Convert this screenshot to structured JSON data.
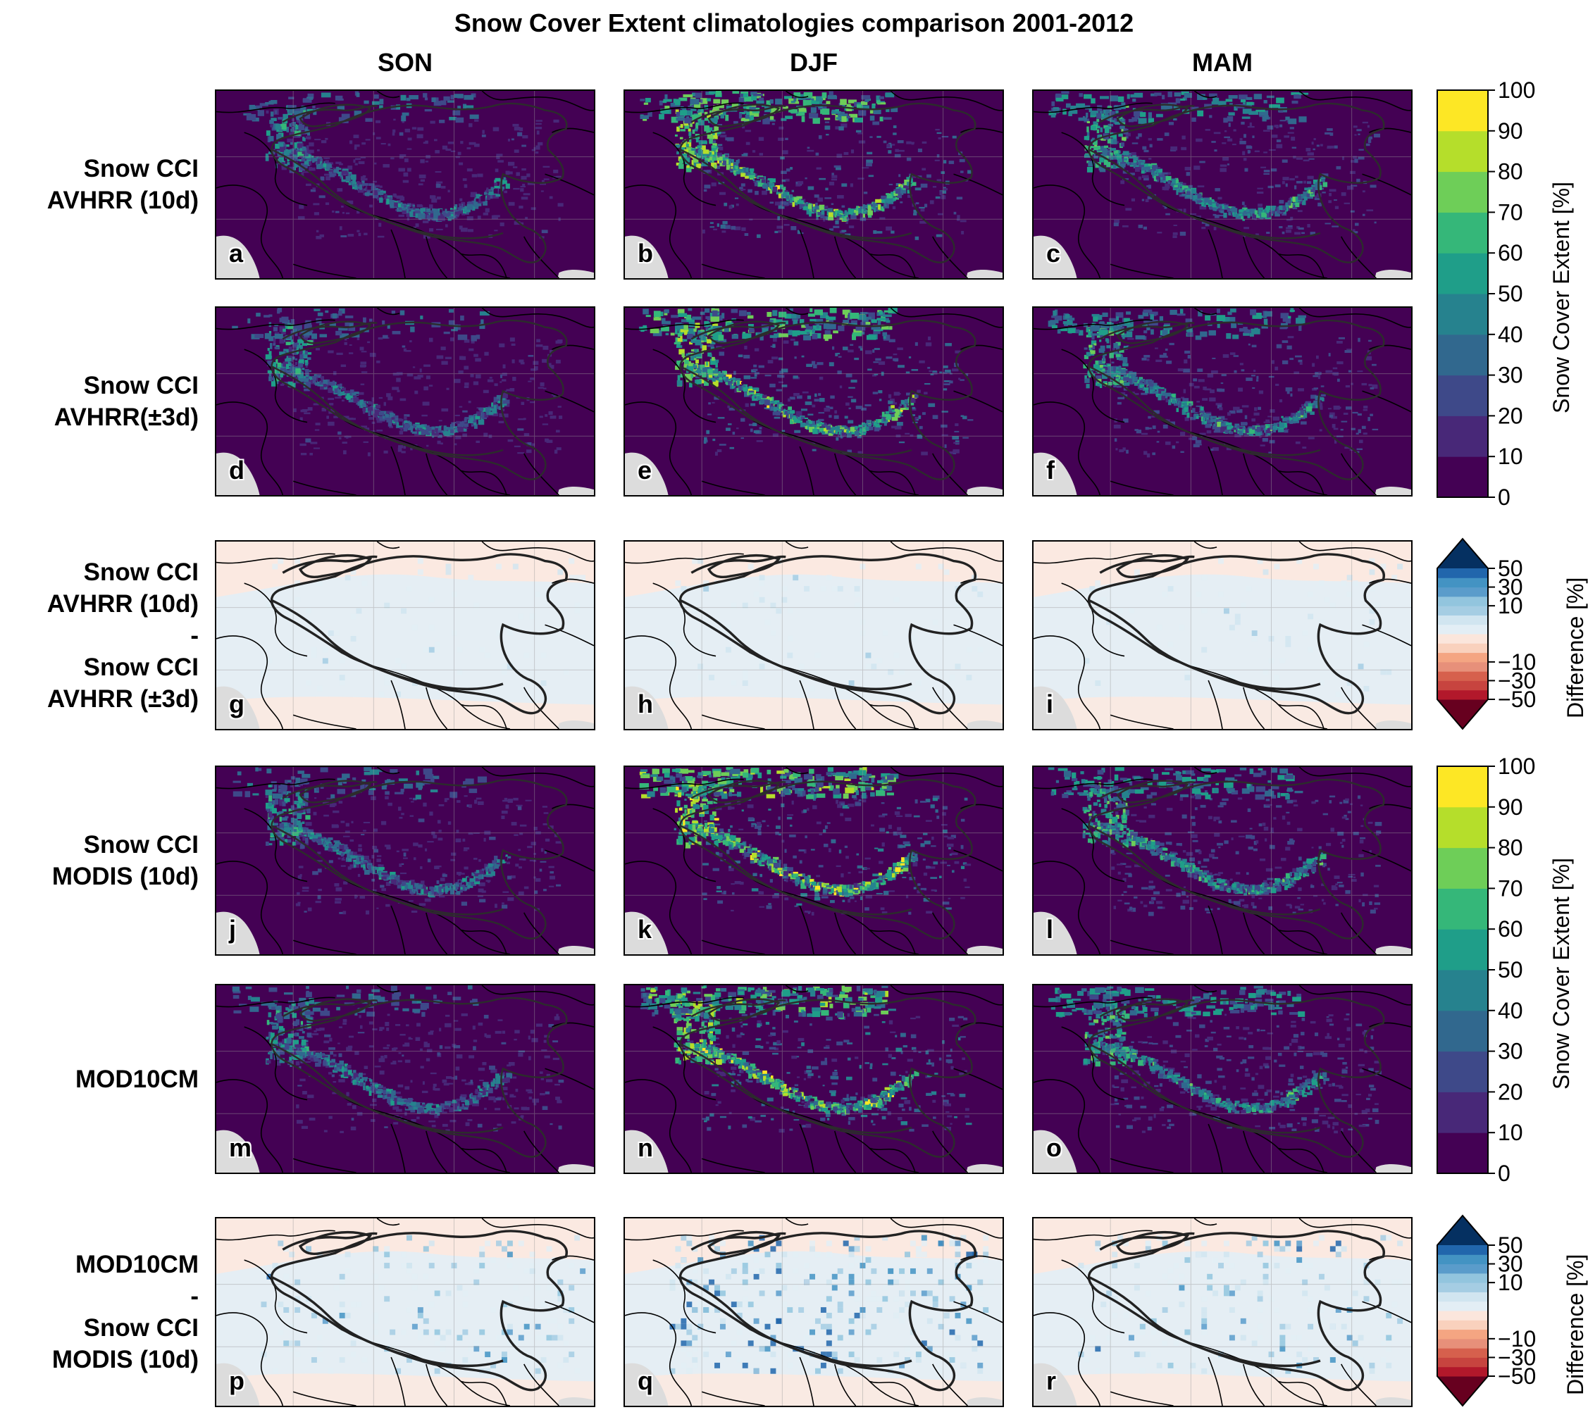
{
  "title": "Snow Cover Extent climatologies comparison 2001-2012",
  "columns": [
    "SON",
    "DJF",
    "MAM"
  ],
  "rows": [
    {
      "label_lines": [
        "Snow CCI",
        "AVHRR (10d)"
      ],
      "type": "sce",
      "panels": [
        "a",
        "b",
        "c"
      ]
    },
    {
      "label_lines": [
        "Snow CCI",
        "AVHRR(±3d)"
      ],
      "type": "sce",
      "panels": [
        "d",
        "e",
        "f"
      ]
    },
    {
      "label_lines": [
        "Snow CCI",
        "AVHRR (10d)",
        "-",
        "Snow CCI",
        "AVHRR (±3d)"
      ],
      "type": "diff",
      "panels": [
        "g",
        "h",
        "i"
      ]
    },
    {
      "label_lines": [
        "Snow CCI",
        "MODIS (10d)"
      ],
      "type": "sce",
      "panels": [
        "j",
        "k",
        "l"
      ]
    },
    {
      "label_lines": [
        "MOD10CM"
      ],
      "type": "sce",
      "panels": [
        "m",
        "n",
        "o"
      ]
    },
    {
      "label_lines": [
        "MOD10CM",
        "-",
        "Snow CCI",
        "MODIS (10d)"
      ],
      "type": "diff",
      "panels": [
        "p",
        "q",
        "r"
      ]
    }
  ],
  "colorbars": {
    "sce": {
      "label": "Snow Cover Extent [%]",
      "ticks": [
        "0",
        "10",
        "20",
        "30",
        "40",
        "50",
        "60",
        "70",
        "80",
        "90",
        "100"
      ],
      "colors": [
        "#440154",
        "#482878",
        "#3e4989",
        "#31688e",
        "#26828e",
        "#1f9e89",
        "#35b779",
        "#6ece58",
        "#b5de2b",
        "#fde725"
      ]
    },
    "diff": {
      "label": "Difference [%]",
      "ticks": [
        "−50",
        "−30",
        "−10",
        "10",
        "30",
        "50"
      ],
      "colors": [
        "#b2182b",
        "#c7443f",
        "#d6604d",
        "#e7907a",
        "#f4a582",
        "#f9d1bd",
        "#fbe6dc",
        "#e3eef5",
        "#d1e5f0",
        "#a5cde3",
        "#92c5de",
        "#5a9ccb",
        "#4393c3",
        "#2166ac"
      ],
      "under": "#67001f",
      "over": "#053061"
    }
  },
  "colors": {
    "land_no_data": "#dcdcdc",
    "sce_background": "#440154",
    "diff_positive_faint": "#fbe9e1",
    "diff_negative_faint": "#e5eef4"
  }
}
